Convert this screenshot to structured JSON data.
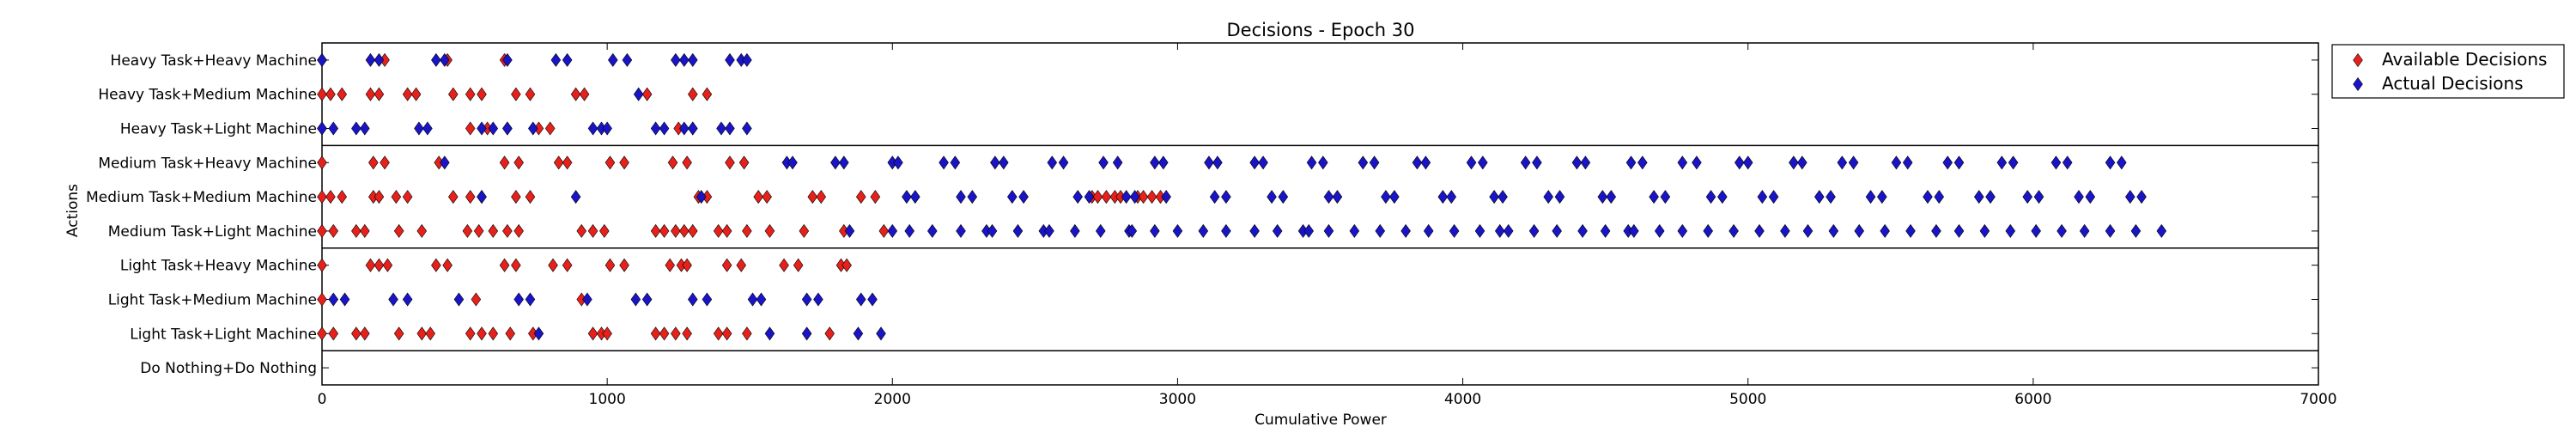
{
  "chart_data": {
    "type": "scatter",
    "title": "Decisions - Epoch 30",
    "xlabel": "Cumulative Power",
    "ylabel": "Actions",
    "xlim": [
      0,
      7000
    ],
    "xticks": [
      0,
      1000,
      2000,
      3000,
      4000,
      5000,
      6000,
      7000
    ],
    "categories": [
      "Heavy Task+Heavy Machine",
      "Heavy Task+Medium Machine",
      "Heavy Task+Light Machine",
      "Medium Task+Heavy Machine",
      "Medium Task+Medium Machine",
      "Medium Task+Light Machine",
      "Light Task+Heavy Machine",
      "Light Task+Medium Machine",
      "Light Task+Light Machine",
      "Do Nothing+Do Nothing"
    ],
    "group_separators_after": [
      2,
      5,
      8
    ],
    "legend": {
      "position": "outside-top-right"
    },
    "series": [
      {
        "name": "Available Decisions",
        "color": "#e8201a",
        "marker": "diamond",
        "points": {
          "Heavy Task+Heavy Machine": [
            0,
            220,
            440,
            640
          ],
          "Heavy Task+Medium Machine": [
            0,
            30,
            70,
            170,
            200,
            300,
            330,
            460,
            520,
            560,
            680,
            730,
            890,
            920,
            1140,
            1300,
            1350
          ],
          "Heavy Task+Light Machine": [
            0,
            520,
            580,
            650,
            760,
            800,
            1250,
            1300
          ],
          "Medium Task+Heavy Machine": [
            0,
            180,
            220,
            410,
            640,
            690,
            830,
            860,
            1010,
            1060,
            1230,
            1280,
            1430,
            1480
          ],
          "Medium Task+Medium Machine": [
            0,
            30,
            70,
            180,
            200,
            260,
            300,
            460,
            520,
            560,
            680,
            730,
            1320,
            1350,
            1530,
            1560,
            1720,
            1750,
            1890,
            1940,
            2700,
            2720,
            2750,
            2780,
            2800,
            2860,
            2880,
            2910,
            2940
          ],
          "Medium Task+Light Machine": [
            0,
            40,
            120,
            150,
            270,
            350,
            510,
            550,
            600,
            650,
            690,
            910,
            950,
            990,
            1170,
            1200,
            1240,
            1270,
            1300,
            1390,
            1420,
            1490,
            1570,
            1690,
            1830,
            1970
          ],
          "Light Task+Heavy Machine": [
            0,
            170,
            200,
            230,
            400,
            440,
            640,
            680,
            810,
            860,
            1010,
            1060,
            1220,
            1260,
            1280,
            1420,
            1470,
            1620,
            1670,
            1820,
            1840
          ],
          "Light Task+Medium Machine": [
            0,
            540,
            910
          ],
          "Light Task+Light Machine": [
            0,
            40,
            120,
            150,
            270,
            350,
            380,
            520,
            560,
            600,
            660,
            740,
            950,
            980,
            1000,
            1170,
            1200,
            1240,
            1280,
            1390,
            1420,
            1490,
            1780
          ]
        }
      },
      {
        "name": "Actual Decisions",
        "color": "#1a14c8",
        "marker": "diamond",
        "points": {
          "Heavy Task+Heavy Machine": [
            0,
            170,
            200,
            400,
            430,
            650,
            820,
            860,
            1020,
            1070,
            1240,
            1270,
            1300,
            1430,
            1470,
            1490
          ],
          "Heavy Task+Medium Machine": [
            1110
          ],
          "Heavy Task+Light Machine": [
            0,
            40,
            120,
            150,
            340,
            370,
            560,
            600,
            650,
            740,
            950,
            980,
            1000,
            1170,
            1200,
            1270,
            1300,
            1400,
            1430,
            1490
          ],
          "Medium Task+Heavy Machine": [
            430,
            1630,
            1650,
            1800,
            1830,
            2000,
            2020,
            2180,
            2220,
            2360,
            2390,
            2560,
            2600,
            2740,
            2790,
            2920,
            2950,
            3110,
            3140,
            3270,
            3300,
            3470,
            3510,
            3650,
            3690,
            3840,
            3870,
            4030,
            4070,
            4220,
            4260,
            4400,
            4430,
            4590,
            4630,
            4770,
            4820,
            4970,
            5000,
            5160,
            5190,
            5330,
            5370,
            5520,
            5560,
            5700,
            5740,
            5890,
            5930,
            6080,
            6120,
            6270,
            6310
          ],
          "Medium Task+Medium Machine": [
            560,
            890,
            1330,
            2050,
            2080,
            2240,
            2280,
            2420,
            2460,
            2650,
            2690,
            2820,
            2850,
            2960,
            3130,
            3170,
            3330,
            3370,
            3530,
            3560,
            3730,
            3760,
            3930,
            3960,
            4110,
            4140,
            4300,
            4340,
            4490,
            4520,
            4670,
            4710,
            4870,
            4910,
            5050,
            5090,
            5250,
            5290,
            5430,
            5470,
            5630,
            5670,
            5810,
            5850,
            5980,
            6020,
            6160,
            6200,
            6340,
            6380
          ],
          "Medium Task+Light Machine": [
            1850,
            2000,
            2060,
            2140,
            2240,
            2330,
            2350,
            2440,
            2530,
            2550,
            2640,
            2730,
            2830,
            2840,
            2920,
            3000,
            3090,
            3170,
            3270,
            3350,
            3440,
            3460,
            3530,
            3620,
            3710,
            3800,
            3880,
            3970,
            4060,
            4130,
            4160,
            4250,
            4330,
            4420,
            4500,
            4580,
            4600,
            4690,
            4770,
            4860,
            4950,
            5040,
            5130,
            5210,
            5300,
            5390,
            5480,
            5570,
            5660,
            5740,
            5830,
            5920,
            6010,
            6100,
            6180,
            6270,
            6360,
            6450
          ],
          "Light Task+Heavy Machine": [],
          "Light Task+Medium Machine": [
            40,
            80,
            250,
            300,
            480,
            690,
            730,
            930,
            1100,
            1140,
            1300,
            1350,
            1510,
            1540,
            1700,
            1740,
            1890,
            1930
          ],
          "Light Task+Light Machine": [
            760,
            1570,
            1700,
            1880,
            1960
          ]
        }
      }
    ]
  }
}
